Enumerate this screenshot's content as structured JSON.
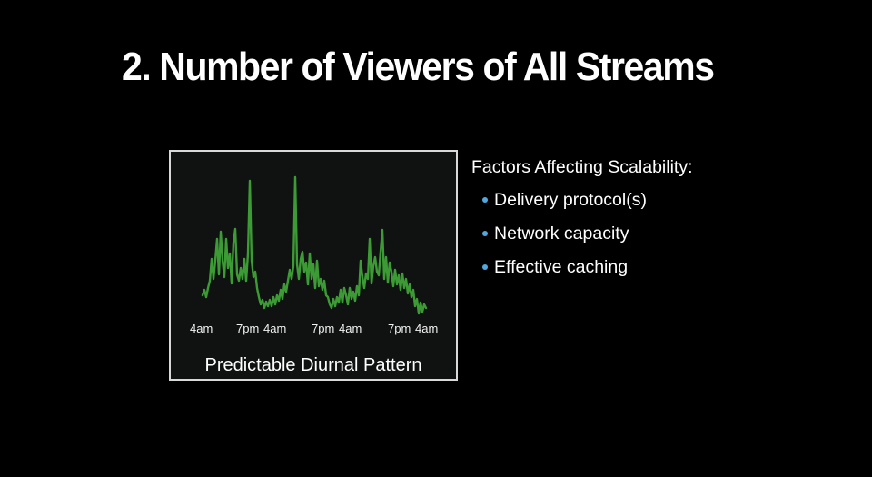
{
  "slide": {
    "title": "2. Number of Viewers of All Streams"
  },
  "figure": {
    "caption": "Predictable Diurnal Pattern",
    "tick_labels": [
      "4am",
      "7pm",
      "4am",
      "7pm",
      "4am",
      "7pm",
      "4am"
    ],
    "line_color": "#3d9b35"
  },
  "factors": {
    "heading": "Factors Affecting Scalability:",
    "items": [
      {
        "label": "Delivery protocol(s)"
      },
      {
        "label": "Network capacity"
      },
      {
        "label": "Effective caching"
      }
    ],
    "bullet_color": "#4fa9dc"
  }
}
